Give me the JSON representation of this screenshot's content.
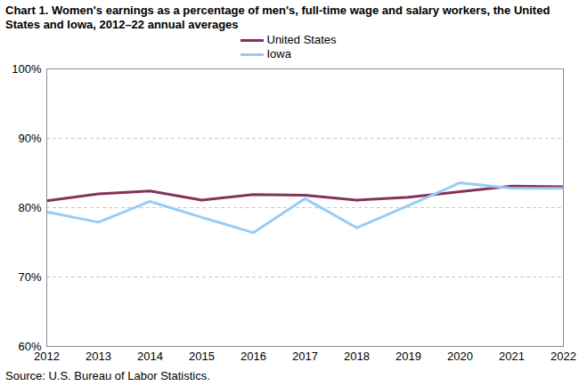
{
  "chart_data": {
    "type": "line",
    "title": "Chart 1. Women's earnings as a percentage of men's, full-time wage and salary workers, the United States and Iowa, 2012–22 annual averages",
    "caption": "Source: U.S. Bureau of Labor Statistics.",
    "x": [
      2012,
      2013,
      2014,
      2015,
      2016,
      2017,
      2018,
      2019,
      2020,
      2021,
      2022
    ],
    "series": [
      {
        "name": "United States",
        "color": "#85325c",
        "values": [
          81.0,
          82.0,
          82.4,
          81.1,
          81.9,
          81.8,
          81.1,
          81.5,
          82.3,
          83.1,
          83.0
        ]
      },
      {
        "name": "Iowa",
        "color": "#99ccf5",
        "values": [
          79.4,
          77.9,
          80.9,
          78.6,
          76.4,
          81.3,
          77.1,
          80.3,
          83.6,
          82.8,
          82.8
        ]
      }
    ],
    "xlim": [
      2012,
      2022
    ],
    "xticks": [
      2012,
      2013,
      2014,
      2015,
      2016,
      2017,
      2018,
      2019,
      2020,
      2021,
      2022
    ],
    "ylim": [
      60,
      100
    ],
    "yticks": [
      {
        "value": 60,
        "label": "60%"
      },
      {
        "value": 70,
        "label": "70%"
      },
      {
        "value": 80,
        "label": "80%"
      },
      {
        "value": 90,
        "label": "90%"
      },
      {
        "value": 100,
        "label": "100%"
      }
    ],
    "grid": true,
    "legend": "top"
  }
}
